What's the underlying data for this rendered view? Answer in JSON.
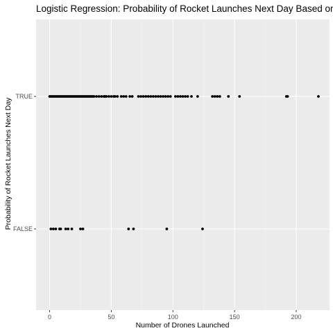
{
  "chart_data": {
    "type": "scatter",
    "title": "Logistic Regression: Probability of Rocket Launches Next Day Based on D",
    "xlabel": "Number of Drones Launched",
    "ylabel": "Probability of Rocket Launches Next Day",
    "xlim": [
      -11,
      227
    ],
    "x_ticks": [
      0,
      50,
      100,
      150,
      200
    ],
    "x_tick_labels": [
      "0",
      "50",
      "100",
      "150",
      "200"
    ],
    "y_categories": [
      "FALSE",
      "TRUE"
    ],
    "grid": true,
    "panel_background": "#ebebeb",
    "point_color": "#000000",
    "points": [
      {
        "y": "TRUE",
        "x": [
          0,
          1,
          2,
          3,
          4,
          5,
          6,
          7,
          8,
          9,
          10,
          11,
          12,
          13,
          14,
          15,
          16,
          17,
          18,
          19,
          20,
          21,
          22,
          23,
          24,
          25,
          26,
          27,
          28,
          29,
          30,
          31,
          32,
          33,
          34,
          35,
          36,
          38,
          40,
          42,
          44,
          45,
          46,
          48,
          50,
          52,
          53,
          55,
          58,
          60,
          62,
          65,
          67,
          72,
          74,
          76,
          78,
          80,
          82,
          84,
          86,
          88,
          90,
          92,
          94,
          96,
          98,
          102,
          104,
          106,
          108,
          110,
          112,
          115,
          120,
          132,
          134,
          136,
          138,
          145,
          154,
          192,
          193,
          218
        ]
      },
      {
        "y": "FALSE",
        "x": [
          1,
          3,
          5,
          8,
          9,
          13,
          15,
          18,
          25,
          27,
          64,
          68,
          95,
          124
        ]
      }
    ]
  }
}
